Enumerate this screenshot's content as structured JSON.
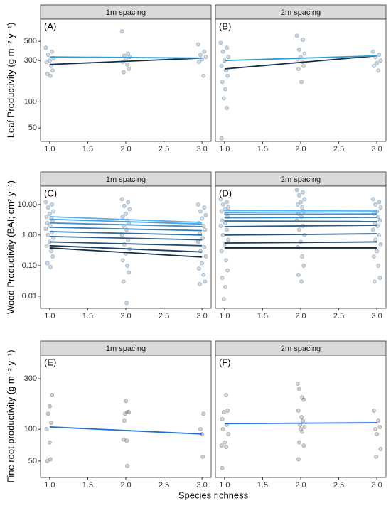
{
  "chart_data": [
    {
      "type": "scatter",
      "strip": "1m spacing",
      "panel_label": "(A)",
      "ylabel": "Leaf Productivity (g m⁻² y⁻¹)",
      "log_y": true,
      "xlim": [
        0.88,
        3.12
      ],
      "xticks": [
        {
          "value": 1,
          "label": "1.0"
        },
        1.5,
        {
          "value": 2,
          "label": "2.0"
        },
        2.5,
        {
          "value": 3,
          "label": "3.0"
        }
      ],
      "ylim": [
        35,
        900
      ],
      "yticks": [
        50,
        100,
        300,
        500
      ],
      "points": {
        "color": "#5b7e9c",
        "x": [
          0.95,
          1.03,
          0.98,
          1.05,
          1.0,
          0.96,
          1.02,
          1.04,
          0.97,
          1.01,
          1.95,
          2.03,
          1.98,
          2.05,
          2.0,
          1.96,
          2.02,
          2.04,
          1.97,
          2.95,
          3.03,
          2.98,
          3.05,
          3.0,
          2.96,
          3.02
        ],
        "y": [
          420,
          380,
          350,
          320,
          300,
          290,
          260,
          230,
          210,
          200,
          650,
          360,
          340,
          330,
          310,
          290,
          270,
          240,
          220,
          460,
          380,
          350,
          330,
          310,
          290,
          200
        ]
      },
      "lines": [
        {
          "color": "#132b43",
          "x": [
            1,
            3
          ],
          "y": [
            270,
            320
          ]
        },
        {
          "color": "#2a9fd8",
          "x": [
            1,
            3
          ],
          "y": [
            330,
            320
          ]
        }
      ]
    },
    {
      "type": "scatter",
      "strip": "2m spacing",
      "panel_label": "(B)",
      "log_y": true,
      "xlim": [
        0.88,
        3.12
      ],
      "xticks": [
        {
          "value": 1,
          "label": "1.0"
        },
        1.5,
        {
          "value": 2,
          "label": "2.0"
        },
        2.5,
        {
          "value": 3,
          "label": "3.0"
        }
      ],
      "ylim": [
        35,
        900
      ],
      "points": {
        "color": "#5b7e9c",
        "x": [
          0.95,
          1.03,
          0.98,
          1.05,
          1.0,
          0.96,
          1.02,
          1.04,
          0.97,
          1.01,
          0.99,
          1.03,
          0.96,
          1.95,
          2.03,
          1.98,
          2.05,
          2.0,
          1.96,
          2.02,
          2.04,
          1.97,
          2.01,
          2.95,
          3.03,
          2.98,
          3.05,
          3.0,
          2.96,
          3.02
        ],
        "y": [
          480,
          420,
          380,
          330,
          300,
          260,
          230,
          200,
          170,
          140,
          110,
          85,
          38,
          580,
          520,
          400,
          360,
          330,
          310,
          290,
          260,
          240,
          170,
          380,
          350,
          330,
          300,
          280,
          260,
          230
        ]
      },
      "lines": [
        {
          "color": "#132b43",
          "x": [
            1,
            3
          ],
          "y": [
            240,
            340
          ]
        },
        {
          "color": "#2a9fd8",
          "x": [
            1,
            3
          ],
          "y": [
            300,
            340
          ]
        }
      ]
    },
    {
      "type": "scatter",
      "strip": "1m spacing",
      "panel_label": "(C)",
      "ylabel": "Wood Productivity (BAI;  cm² y⁻¹)",
      "log_y": true,
      "xlim": [
        0.88,
        3.12
      ],
      "xticks": [
        {
          "value": 1,
          "label": "1.0"
        },
        1.5,
        {
          "value": 2,
          "label": "2.0"
        },
        2.5,
        {
          "value": 3,
          "label": "3.0"
        }
      ],
      "ylim": [
        0.004,
        40
      ],
      "yticks": [
        0.01,
        {
          "value": 0.1,
          "label": "0.10"
        },
        {
          "value": 1,
          "label": "1.00"
        },
        {
          "value": 10,
          "label": "10.00"
        }
      ],
      "points": {
        "color": "#5b7e9c",
        "x": [
          0.95,
          1.03,
          0.98,
          1.05,
          1.0,
          0.96,
          1.02,
          1.04,
          0.97,
          1.01,
          0.95,
          1.03,
          0.98,
          1.05,
          1.0,
          0.96,
          1.02,
          1.04,
          0.97,
          1.01,
          1.95,
          2.03,
          1.98,
          2.05,
          2.0,
          1.96,
          2.02,
          2.04,
          1.97,
          2.01,
          1.95,
          2.03,
          1.98,
          2.05,
          2.0,
          1.96,
          2.02,
          2.04,
          1.97,
          2.01,
          2.95,
          3.03,
          2.98,
          3.05,
          3.0,
          2.96,
          3.02,
          3.04,
          2.97,
          3.01,
          2.95,
          3.03,
          2.98,
          3.05,
          3.0,
          2.96,
          3.02,
          3.04,
          2.97
        ],
        "y": [
          12,
          10,
          8,
          6,
          5,
          4,
          3.5,
          3,
          2.5,
          2,
          1.6,
          1.2,
          1,
          0.8,
          0.6,
          0.45,
          0.3,
          0.2,
          0.12,
          0.09,
          15,
          12,
          9,
          7,
          5,
          4,
          3,
          2.5,
          2,
          1.5,
          1,
          0.7,
          0.5,
          0.35,
          0.25,
          0.15,
          0.1,
          0.06,
          0.03,
          0.006,
          10,
          8,
          6,
          4.5,
          3.5,
          2.5,
          2,
          1.5,
          1.1,
          0.8,
          0.6,
          0.4,
          0.3,
          0.2,
          0.12,
          0.08,
          0.05,
          0.03,
          0.025
        ]
      },
      "lines": [
        {
          "color": "#56b1f7",
          "x": [
            1,
            3
          ],
          "y": [
            4.0,
            2.6
          ]
        },
        {
          "color": "#4ca0e0",
          "x": [
            1,
            3
          ],
          "y": [
            3.3,
            2.3
          ]
        },
        {
          "color": "#438fca",
          "x": [
            1,
            3
          ],
          "y": [
            2.5,
            1.9
          ]
        },
        {
          "color": "#3a7eb4",
          "x": [
            1,
            3
          ],
          "y": [
            1.8,
            1.4
          ]
        },
        {
          "color": "#326e9f",
          "x": [
            1,
            3
          ],
          "y": [
            1.3,
            1.0
          ]
        },
        {
          "color": "#2a5e8a",
          "x": [
            1,
            3
          ],
          "y": [
            0.9,
            0.7
          ]
        },
        {
          "color": "#224e76",
          "x": [
            1,
            3
          ],
          "y": [
            0.6,
            0.45
          ]
        },
        {
          "color": "#1b3f62",
          "x": [
            1,
            3
          ],
          "y": [
            0.45,
            0.28
          ]
        },
        {
          "color": "#132b43",
          "x": [
            1,
            3
          ],
          "y": [
            0.38,
            0.19
          ]
        }
      ]
    },
    {
      "type": "scatter",
      "strip": "2m spacing",
      "panel_label": "(D)",
      "log_y": true,
      "xlim": [
        0.88,
        3.12
      ],
      "xticks": [
        {
          "value": 1,
          "label": "1.0"
        },
        1.5,
        {
          "value": 2,
          "label": "2.0"
        },
        2.5,
        {
          "value": 3,
          "label": "3.0"
        }
      ],
      "ylim": [
        0.004,
        40
      ],
      "points": {
        "color": "#5b7e9c",
        "x": [
          0.95,
          1.03,
          0.98,
          1.05,
          1.0,
          0.96,
          1.02,
          1.04,
          0.97,
          1.01,
          0.95,
          1.03,
          0.98,
          1.05,
          1.0,
          0.96,
          1.02,
          1.04,
          0.97,
          1.01,
          0.99,
          1.95,
          2.03,
          1.98,
          2.05,
          2.0,
          1.96,
          2.02,
          2.04,
          1.97,
          2.01,
          1.95,
          2.03,
          1.98,
          2.05,
          2.0,
          1.96,
          2.02,
          2.04,
          1.97,
          2.01,
          2.95,
          3.03,
          2.98,
          3.05,
          3.0,
          2.96,
          3.02,
          3.04,
          2.97,
          3.01,
          2.95,
          3.03,
          2.98,
          3.05,
          3.0,
          2.96,
          3.02,
          3.04,
          2.97
        ],
        "y": [
          15,
          12,
          10,
          8,
          7,
          6,
          5,
          4,
          3,
          2.5,
          2,
          1.5,
          1,
          0.7,
          0.5,
          0.3,
          0.15,
          0.07,
          0.04,
          0.02,
          0.008,
          30,
          25,
          20,
          15,
          12,
          10,
          8,
          6,
          5,
          4,
          3,
          2,
          1.5,
          1,
          0.6,
          0.4,
          0.2,
          0.1,
          0.05,
          0.03,
          15,
          12,
          10,
          8,
          6,
          5,
          4,
          3,
          2.5,
          2,
          1.5,
          1,
          0.7,
          0.5,
          0.3,
          0.2,
          0.1,
          0.04,
          0.03
        ]
      },
      "lines": [
        {
          "color": "#56b1f7",
          "x": [
            1,
            3
          ],
          "y": [
            6.3,
            6.5
          ]
        },
        {
          "color": "#4ca0e0",
          "x": [
            1,
            3
          ],
          "y": [
            5.5,
            5.8
          ]
        },
        {
          "color": "#438fca",
          "x": [
            1,
            3
          ],
          "y": [
            4.8,
            4.9
          ]
        },
        {
          "color": "#3a7eb4",
          "x": [
            1,
            3
          ],
          "y": [
            3.7,
            3.8
          ]
        },
        {
          "color": "#326e9f",
          "x": [
            1,
            3
          ],
          "y": [
            2.9,
            2.8
          ]
        },
        {
          "color": "#2a5e8a",
          "x": [
            1,
            3
          ],
          "y": [
            1.9,
            2.1
          ]
        },
        {
          "color": "#224e76",
          "x": [
            1,
            3
          ],
          "y": [
            1.0,
            1.1
          ]
        },
        {
          "color": "#1b3f62",
          "x": [
            1,
            3
          ],
          "y": [
            0.55,
            0.6
          ]
        },
        {
          "color": "#132b43",
          "x": [
            1,
            3
          ],
          "y": [
            0.38,
            0.38
          ]
        }
      ]
    },
    {
      "type": "scatter",
      "strip": "1m spacing",
      "panel_label": "(E)",
      "ylabel": "Fine root productivity (g m⁻² y⁻¹)",
      "xlabel": "Species richness",
      "log_y": true,
      "xlim": [
        0.88,
        3.12
      ],
      "xticks": [
        {
          "value": 1,
          "label": "1.0"
        },
        1.5,
        {
          "value": 2,
          "label": "2.0"
        },
        2.5,
        {
          "value": 3,
          "label": "3.0"
        }
      ],
      "ylim": [
        35,
        500
      ],
      "yticks": [
        50,
        100,
        300
      ],
      "points": {
        "color": "#666666",
        "x": [
          1.03,
          1.0,
          0.98,
          1.02,
          0.96,
          1.0,
          1.01,
          0.97,
          2.0,
          2.02,
          2.04,
          1.99,
          1.98,
          1.97,
          2.01,
          2.02,
          3.02,
          2.98,
          3.0,
          3.01
        ],
        "y": [
          210,
          165,
          140,
          115,
          100,
          75,
          52,
          50,
          185,
          145,
          145,
          140,
          120,
          80,
          78,
          45,
          140,
          100,
          90,
          55
        ]
      },
      "lines": [
        {
          "color": "#1f6fd6",
          "x": [
            1,
            3
          ],
          "y": [
            105,
            90
          ]
        }
      ]
    },
    {
      "type": "scatter",
      "strip": "2m spacing",
      "panel_label": "(F)",
      "log_y": true,
      "xlim": [
        0.88,
        3.12
      ],
      "xticks": [
        {
          "value": 1,
          "label": "1.0"
        },
        1.5,
        {
          "value": 2,
          "label": "2.0"
        },
        2.5,
        {
          "value": 3,
          "label": "3.0"
        }
      ],
      "ylim": [
        35,
        500
      ],
      "points": {
        "color": "#666666",
        "x": [
          1.02,
          1.04,
          0.99,
          0.97,
          1.03,
          0.98,
          1.05,
          1.0,
          0.96,
          1.02,
          0.97,
          1.96,
          1.98,
          2.02,
          2.04,
          1.97,
          2.01,
          2.03,
          1.99,
          2.05,
          2.0,
          2.02,
          1.98,
          2.04,
          1.97,
          2.96,
          3.02,
          3.04,
          2.98,
          3.0,
          3.05,
          2.99
        ],
        "y": [
          210,
          150,
          145,
          125,
          110,
          100,
          90,
          75,
          70,
          68,
          43,
          270,
          240,
          200,
          190,
          150,
          130,
          120,
          110,
          105,
          100,
          95,
          75,
          70,
          52,
          150,
          120,
          105,
          100,
          90,
          65,
          55
        ]
      },
      "lines": [
        {
          "color": "#1f6fd6",
          "x": [
            1,
            3
          ],
          "y": [
            113,
            115
          ]
        }
      ]
    }
  ]
}
